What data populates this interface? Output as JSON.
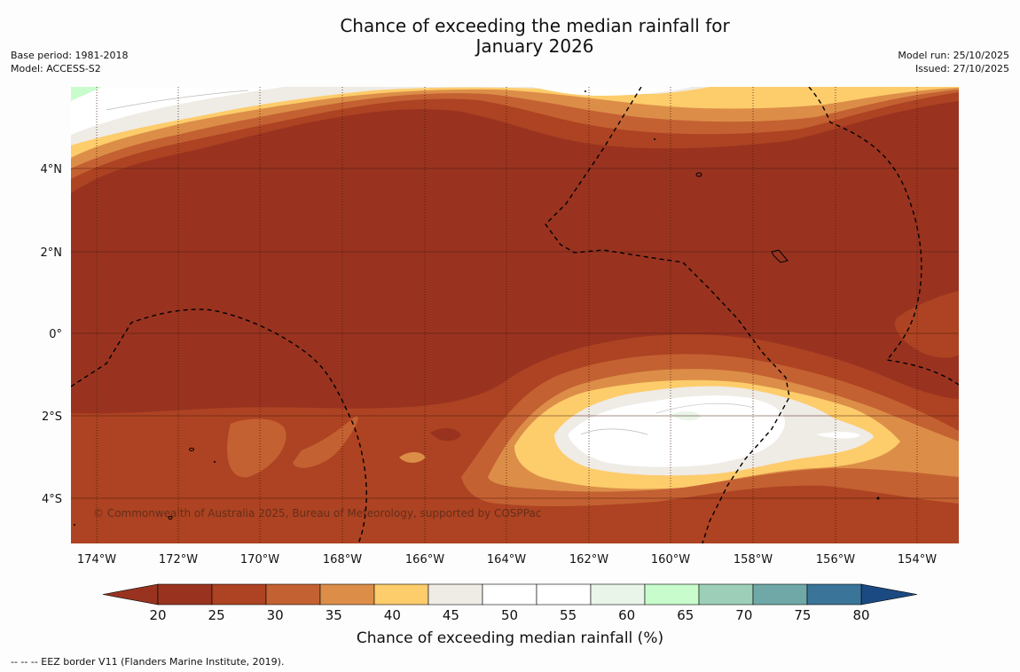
{
  "title_line1": "Chance of exceeding the median rainfall for",
  "title_line2": "January 2026",
  "base_period": "Base period: 1981-2018",
  "model": "Model: ACCESS-S2",
  "model_run": "Model run: 25/10/2025",
  "issued": "Issued: 27/10/2025",
  "copyright": "© Commonwealth of Australia 2025, Bureau of Meteorology, supported by COSPPac",
  "colorbar_title": "Chance of exceeding median rainfall (%)",
  "footnote": "--  --  -- EEZ border V11 (Flanders Marine Institute, 2019).",
  "lon_labels": [
    "174°W",
    "172°W",
    "170°W",
    "168°W",
    "166°W",
    "164°W",
    "162°W",
    "160°W",
    "158°W",
    "156°W",
    "154°W"
  ],
  "lat_labels": [
    "4°N",
    "2°N",
    "0°",
    "2°S",
    "4°S"
  ],
  "colorbar": {
    "ticks": [
      "20",
      "25",
      "30",
      "35",
      "40",
      "45",
      "50",
      "55",
      "60",
      "65",
      "70",
      "75",
      "80"
    ],
    "colors": [
      "#993320",
      "#ad4322",
      "#c46132",
      "#dc8e48",
      "#fdcc6b",
      "#efebe5",
      "#ffffff",
      "#ffffff",
      "#e9f5e9",
      "#c8fccc",
      "#9dcfb8",
      "#70a8a8",
      "#3a7499"
    ],
    "under_color": "#993320",
    "over_color": "#1b4a83"
  },
  "palette": {
    "p20": "#993320",
    "p25": "#ad4322",
    "p30": "#c46132",
    "p35": "#dc8e48",
    "p40": "#fdcc6b",
    "p45": "#efebe5",
    "p55": "#ffffff",
    "p60": "#e9f5e9",
    "p65": "#c8fccc"
  }
}
